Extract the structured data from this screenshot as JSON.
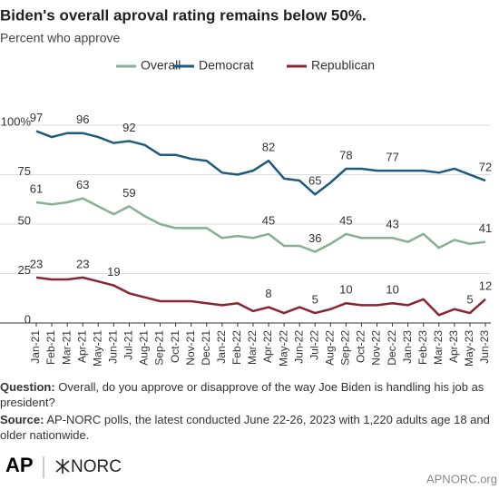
{
  "chart_data": {
    "type": "line",
    "title": "Biden's overall aproval rating remains below 50%.",
    "subtitle": "Percent who approve",
    "categories": [
      "Jan-21",
      "Feb-21",
      "Mar-21",
      "Apr-21",
      "May-21",
      "Jun-21",
      "Jul-21",
      "Aug-21",
      "Sep-21",
      "Oct-21",
      "Nov-21",
      "Dec-21",
      "Jan-22",
      "Feb-22",
      "Mar-22",
      "Apr-22",
      "May-22",
      "Jun-22",
      "Jul-22",
      "Aug-22",
      "Sep-22",
      "Oct-22",
      "Nov-22",
      "Dec-22",
      "Jan-23",
      "Feb-23",
      "Mar-23",
      "Apr-23",
      "May-23",
      "Jun-23"
    ],
    "series": [
      {
        "name": "Overall",
        "color": "#86b093",
        "values": [
          61,
          60,
          61,
          63,
          59,
          55,
          59,
          54,
          50,
          48,
          48,
          48,
          43,
          44,
          43,
          45,
          39,
          39,
          36,
          40,
          45,
          43,
          43,
          43,
          41,
          45,
          38,
          42,
          40,
          41
        ],
        "value_labels": [
          "61",
          null,
          null,
          "63",
          null,
          null,
          "59",
          null,
          null,
          null,
          null,
          null,
          null,
          null,
          null,
          "45",
          null,
          null,
          "36",
          null,
          "45",
          null,
          null,
          "43",
          null,
          null,
          null,
          null,
          null,
          "41"
        ]
      },
      {
        "name": "Democrat",
        "color": "#1d5a7e",
        "values": [
          97,
          94,
          96,
          96,
          94,
          91,
          92,
          90,
          85,
          85,
          83,
          82,
          76,
          75,
          77,
          82,
          73,
          72,
          65,
          71,
          78,
          78,
          77,
          77,
          77,
          77,
          76,
          78,
          75,
          72
        ],
        "value_labels": [
          "97",
          null,
          null,
          "96",
          null,
          null,
          "92",
          null,
          null,
          null,
          null,
          null,
          null,
          null,
          null,
          "82",
          null,
          null,
          "65",
          null,
          "78",
          null,
          null,
          "77",
          null,
          null,
          null,
          null,
          null,
          "72"
        ]
      },
      {
        "name": "Republican",
        "color": "#8c2332",
        "values": [
          23,
          22,
          22,
          23,
          21,
          19,
          15,
          13,
          11,
          11,
          11,
          10,
          9,
          10,
          6,
          8,
          5,
          8,
          5,
          7,
          10,
          9,
          9,
          10,
          9,
          12,
          4,
          7,
          5,
          12
        ],
        "value_labels": [
          "23",
          null,
          null,
          "23",
          null,
          "19",
          null,
          null,
          null,
          null,
          null,
          null,
          null,
          null,
          null,
          "8",
          null,
          null,
          "5",
          null,
          "10",
          null,
          null,
          "10",
          null,
          null,
          null,
          null,
          "5",
          "12"
        ]
      }
    ],
    "ylim": [
      0,
      100
    ],
    "yticks": [
      0,
      25,
      50,
      75,
      {
        "value": 100,
        "label": "100%"
      }
    ],
    "grid": true,
    "legend": "top"
  },
  "notes": [
    {
      "label": "Question:",
      "text": "Overall, do you approve or disapprove of the way Joe Biden is handling his job as president?"
    },
    {
      "label": "Source:",
      "text": "AP-NORC polls, the latest conducted June 22-26, 2023 with 1,220  adults age 18 and older nationwide."
    }
  ],
  "logos": [
    "AP",
    "NORC"
  ],
  "url": "APNORC.org"
}
